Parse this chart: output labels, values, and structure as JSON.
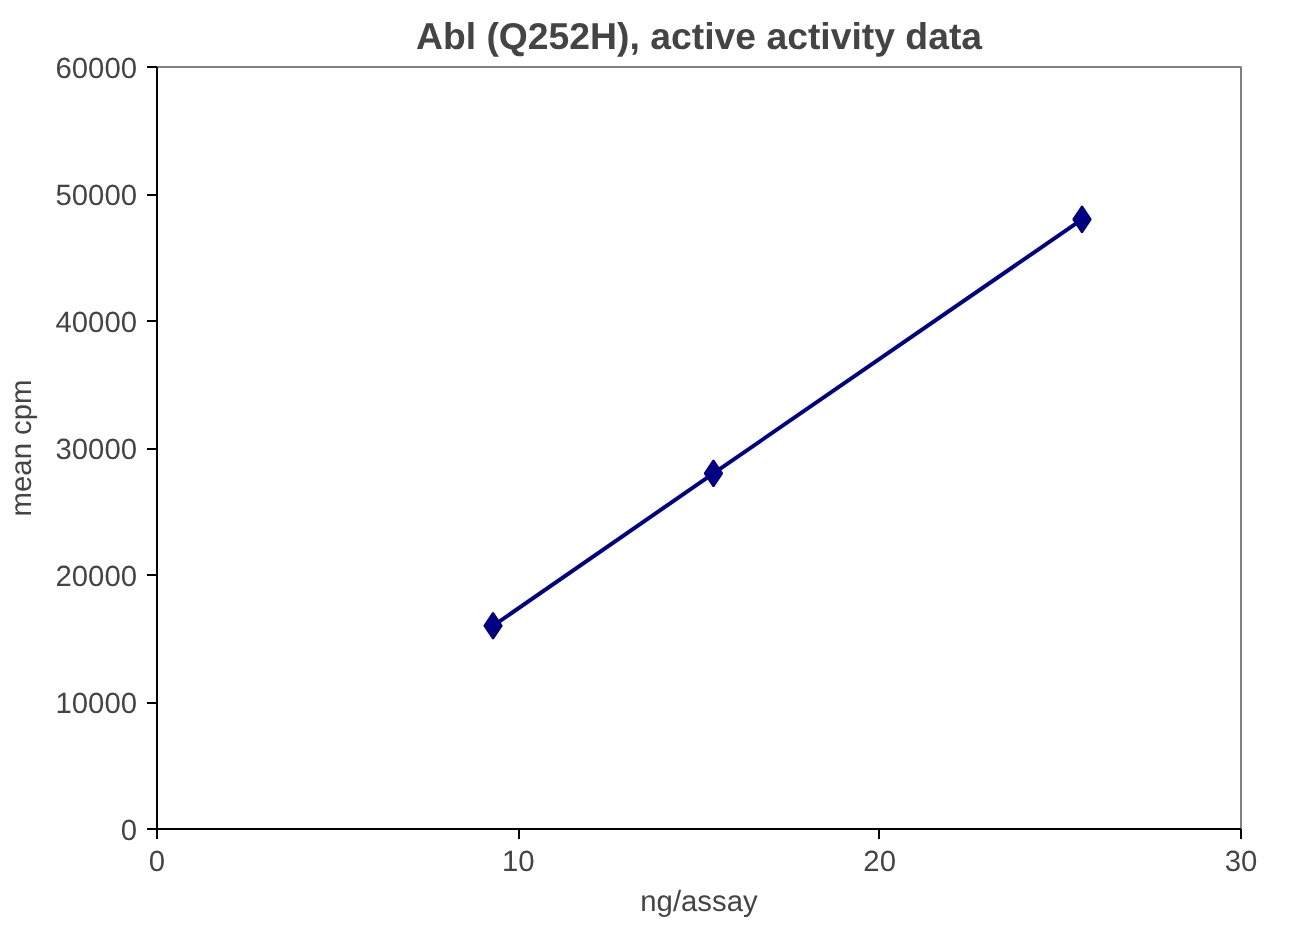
{
  "chart_data": {
    "type": "line",
    "title": "Abl (Q252H), active activity data",
    "xlabel": "ng/assay",
    "ylabel": "mean cpm",
    "series": [
      {
        "color": "#000080",
        "x": [
          9.3,
          15.4,
          25.6
        ],
        "values": [
          16000,
          28000,
          48000
        ]
      }
    ],
    "xlim": [
      0,
      30
    ],
    "xticks": [
      0,
      10,
      20,
      30
    ],
    "ylim": [
      0,
      60000
    ],
    "yticks": [
      0,
      10000,
      20000,
      30000,
      40000,
      50000,
      60000
    ],
    "grid": false,
    "marker": "diamond",
    "line_style": "solid"
  }
}
